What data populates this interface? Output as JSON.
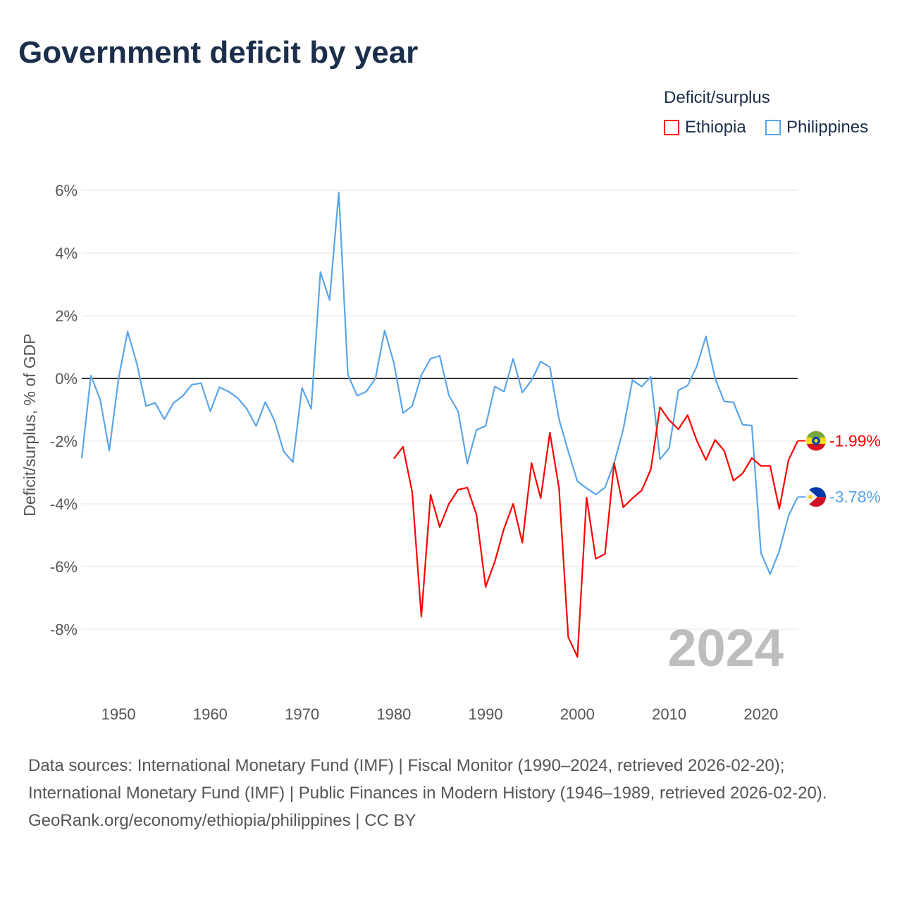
{
  "title": "Government deficit by year",
  "legend": {
    "title": "Deficit/surplus",
    "items": [
      {
        "name": "Ethiopia",
        "color": "#ff0000"
      },
      {
        "name": "Philippines",
        "color": "#5aa5e8"
      }
    ]
  },
  "year_label": "2024",
  "footer": {
    "sources": "Data sources: International Monetary Fund (IMF) | Fiscal Monitor (1990–2024, retrieved 2026-02-20); International Monetary Fund (IMF) | Public Finances in Modern History (1946–1989, retrieved 2026-02-20).",
    "credit": "GeoRank.org/economy/ethiopia/philippines | CC BY"
  },
  "chart_data": {
    "type": "line",
    "title": "Government deficit by year",
    "xlabel": "",
    "ylabel": "Deficit/surplus, % of GDP",
    "xlim": [
      1946,
      2024
    ],
    "ylim": [
      -10,
      6
    ],
    "xticks": [
      1950,
      1960,
      1970,
      1980,
      1990,
      2000,
      2010,
      2020
    ],
    "xtick_labels": [
      "1950",
      "1960",
      "1970",
      "1980",
      "1990",
      "2000",
      "2010",
      "2020"
    ],
    "yticks": [
      6,
      4,
      2,
      0,
      -2,
      -4,
      -6,
      -8
    ],
    "ytick_labels": [
      "6%",
      "4%",
      "2%",
      "0%",
      "-2%",
      "-4%",
      "-6%",
      "-8%"
    ],
    "grid": true,
    "legend_position": "top-right",
    "series": [
      {
        "name": "Ethiopia",
        "color": "#ff0000",
        "start_year": 1980,
        "end_label": "-1.99%",
        "values": [
          -2.56,
          -2.18,
          -3.62,
          -7.6,
          -3.71,
          -4.74,
          -4.0,
          -3.55,
          -3.48,
          -4.34,
          -6.65,
          -5.84,
          -4.79,
          -4.0,
          -5.24,
          -2.7,
          -3.82,
          -1.73,
          -3.5,
          -8.25,
          -8.88,
          -3.8,
          -5.75,
          -5.6,
          -2.7,
          -4.11,
          -3.82,
          -3.57,
          -2.9,
          -0.92,
          -1.33,
          -1.62,
          -1.17,
          -1.98,
          -2.6,
          -1.96,
          -2.31,
          -3.26,
          -3.03,
          -2.54,
          -2.79,
          -2.79,
          -4.16,
          -2.6,
          -1.99
        ]
      },
      {
        "name": "Philippines",
        "color": "#5aa5e8",
        "start_year": 1946,
        "end_label": "-3.78%",
        "values": [
          -2.54,
          0.09,
          -0.67,
          -2.3,
          -0.02,
          1.5,
          0.47,
          -0.88,
          -0.78,
          -1.3,
          -0.78,
          -0.56,
          -0.2,
          -0.15,
          -1.05,
          -0.28,
          -0.42,
          -0.63,
          -0.98,
          -1.52,
          -0.75,
          -1.34,
          -2.33,
          -2.67,
          -0.3,
          -0.97,
          3.39,
          2.5,
          5.93,
          0.12,
          -0.55,
          -0.42,
          0.0,
          1.53,
          0.5,
          -1.1,
          -0.88,
          0.1,
          0.63,
          0.72,
          -0.54,
          -1.05,
          -2.72,
          -1.64,
          -1.52,
          -0.26,
          -0.42,
          0.63,
          -0.45,
          -0.06,
          0.54,
          0.36,
          -1.3,
          -2.33,
          -3.28,
          -3.5,
          -3.7,
          -3.48,
          -2.7,
          -1.62,
          -0.05,
          -0.26,
          0.05,
          -2.58,
          -2.22,
          -0.38,
          -0.23,
          0.38,
          1.34,
          0.0,
          -0.74,
          -0.76,
          -1.48,
          -1.5,
          -5.57,
          -6.24,
          -5.5,
          -4.38,
          -3.78
        ]
      }
    ]
  }
}
